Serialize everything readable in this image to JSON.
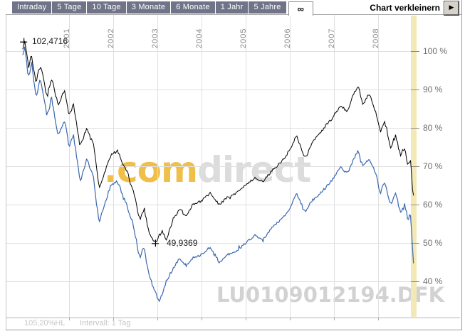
{
  "header": {
    "range_tabs": [
      "Intraday",
      "5 Tage",
      "10 Tage",
      "3 Monate",
      "6 Monate",
      "1 Jahr",
      "5 Jahre"
    ],
    "range_tab_selected": "∞",
    "collapse_label": "Chart verkleinern",
    "collapse_button_glyph": "▶"
  },
  "chart_data": {
    "type": "line",
    "title": "",
    "xlabel": "",
    "ylabel": "",
    "x_tick_labels": [
      "2001",
      "2002",
      "2003",
      "2004",
      "2005",
      "2006",
      "2007",
      "2008"
    ],
    "y_tick_values": [
      100,
      90,
      80,
      70,
      60,
      50,
      40
    ],
    "y_tick_suffix": " %",
    "ylim_percent": [
      36,
      104
    ],
    "x_range_years": [
      1999.95,
      2008.82
    ],
    "grid": true,
    "legend_position": "none",
    "annotations": [
      {
        "text": "102,4716",
        "value": 102.4716,
        "year": 1999.97,
        "series": "fund-performance-black"
      },
      {
        "text": "49,9369",
        "value": 49.9369,
        "year": 2002.95,
        "series": "fund-performance-black"
      }
    ],
    "series": [
      {
        "name": "fund-performance-black",
        "color": "#000000",
        "points": [
          [
            1999.95,
            100.5
          ],
          [
            2000.0,
            102.47
          ],
          [
            2000.08,
            96
          ],
          [
            2000.15,
            99
          ],
          [
            2000.25,
            92
          ],
          [
            2000.35,
            96.5
          ],
          [
            2000.5,
            88
          ],
          [
            2000.6,
            93
          ],
          [
            2000.75,
            86
          ],
          [
            2000.9,
            90
          ],
          [
            2001.0,
            83
          ],
          [
            2001.1,
            86
          ],
          [
            2001.25,
            75
          ],
          [
            2001.4,
            80
          ],
          [
            2001.55,
            76
          ],
          [
            2001.68,
            64
          ],
          [
            2001.8,
            68
          ],
          [
            2001.95,
            73
          ],
          [
            2002.1,
            74
          ],
          [
            2002.3,
            69
          ],
          [
            2002.45,
            64
          ],
          [
            2002.6,
            56
          ],
          [
            2002.7,
            59
          ],
          [
            2002.8,
            53
          ],
          [
            2002.95,
            49.94
          ],
          [
            2003.1,
            53
          ],
          [
            2003.2,
            51
          ],
          [
            2003.35,
            56
          ],
          [
            2003.5,
            59
          ],
          [
            2003.65,
            57
          ],
          [
            2003.8,
            60
          ],
          [
            2004.0,
            61
          ],
          [
            2004.2,
            63
          ],
          [
            2004.4,
            60
          ],
          [
            2004.6,
            62
          ],
          [
            2004.8,
            63
          ],
          [
            2005.0,
            65
          ],
          [
            2005.2,
            67
          ],
          [
            2005.4,
            66
          ],
          [
            2005.6,
            69
          ],
          [
            2005.8,
            71
          ],
          [
            2006.0,
            74
          ],
          [
            2006.15,
            78
          ],
          [
            2006.35,
            72
          ],
          [
            2006.5,
            76
          ],
          [
            2006.7,
            79
          ],
          [
            2006.85,
            81
          ],
          [
            2007.0,
            83
          ],
          [
            2007.15,
            86
          ],
          [
            2007.3,
            84
          ],
          [
            2007.45,
            89
          ],
          [
            2007.55,
            91
          ],
          [
            2007.65,
            86
          ],
          [
            2007.8,
            89
          ],
          [
            2007.95,
            84
          ],
          [
            2008.05,
            79
          ],
          [
            2008.15,
            82
          ],
          [
            2008.28,
            75
          ],
          [
            2008.4,
            78
          ],
          [
            2008.5,
            73
          ],
          [
            2008.6,
            75
          ],
          [
            2008.68,
            70
          ],
          [
            2008.73,
            72
          ],
          [
            2008.78,
            64
          ],
          [
            2008.82,
            61
          ]
        ]
      },
      {
        "name": "benchmark-performance-blue",
        "color": "#3a67b0",
        "points": [
          [
            1999.95,
            99
          ],
          [
            2000.0,
            101
          ],
          [
            2000.08,
            93
          ],
          [
            2000.15,
            97
          ],
          [
            2000.25,
            88
          ],
          [
            2000.35,
            93
          ],
          [
            2000.5,
            83
          ],
          [
            2000.6,
            88
          ],
          [
            2000.75,
            78
          ],
          [
            2000.9,
            82
          ],
          [
            2001.0,
            75
          ],
          [
            2001.1,
            78
          ],
          [
            2001.25,
            66
          ],
          [
            2001.4,
            72
          ],
          [
            2001.55,
            67
          ],
          [
            2001.68,
            55
          ],
          [
            2001.8,
            60
          ],
          [
            2001.95,
            65
          ],
          [
            2002.1,
            66
          ],
          [
            2002.3,
            60
          ],
          [
            2002.45,
            55
          ],
          [
            2002.6,
            46
          ],
          [
            2002.7,
            49
          ],
          [
            2002.8,
            42
          ],
          [
            2002.95,
            37
          ],
          [
            2003.05,
            34.5
          ],
          [
            2003.2,
            40
          ],
          [
            2003.35,
            43
          ],
          [
            2003.5,
            46
          ],
          [
            2003.65,
            44
          ],
          [
            2003.8,
            46
          ],
          [
            2004.0,
            47
          ],
          [
            2004.2,
            49
          ],
          [
            2004.4,
            45
          ],
          [
            2004.6,
            47
          ],
          [
            2004.8,
            48
          ],
          [
            2005.0,
            50
          ],
          [
            2005.2,
            52
          ],
          [
            2005.4,
            51
          ],
          [
            2005.6,
            54
          ],
          [
            2005.8,
            56
          ],
          [
            2006.0,
            59
          ],
          [
            2006.15,
            63
          ],
          [
            2006.35,
            58
          ],
          [
            2006.5,
            61
          ],
          [
            2006.7,
            63
          ],
          [
            2006.85,
            65
          ],
          [
            2007.0,
            67
          ],
          [
            2007.15,
            70
          ],
          [
            2007.3,
            68
          ],
          [
            2007.45,
            72
          ],
          [
            2007.55,
            74
          ],
          [
            2007.65,
            70
          ],
          [
            2007.8,
            72
          ],
          [
            2007.95,
            68
          ],
          [
            2008.05,
            63
          ],
          [
            2008.15,
            66
          ],
          [
            2008.28,
            60
          ],
          [
            2008.4,
            63
          ],
          [
            2008.5,
            58
          ],
          [
            2008.6,
            60
          ],
          [
            2008.68,
            56
          ],
          [
            2008.73,
            58
          ],
          [
            2008.78,
            49
          ],
          [
            2008.82,
            41
          ]
        ]
      }
    ]
  },
  "watermarks": {
    "brand_left": ".com",
    "brand_right": "direct",
    "instrument_id": "LU0109012194.DFK"
  },
  "footer": {
    "range_label": "105,20%HL",
    "interval_label": "Intervall: 1 Tag"
  },
  "colors": {
    "tab_background": "#717489",
    "tab_text": "#ffffff",
    "gridline": "#e0e0e0",
    "axis_line": "#a8a8a8",
    "end_band_yellow": "#f4e9b5",
    "series_black": "#000000",
    "series_blue": "#3a67b0",
    "watermark_orange": "#f0bf4a",
    "watermark_gray": "#d2d2d2"
  }
}
